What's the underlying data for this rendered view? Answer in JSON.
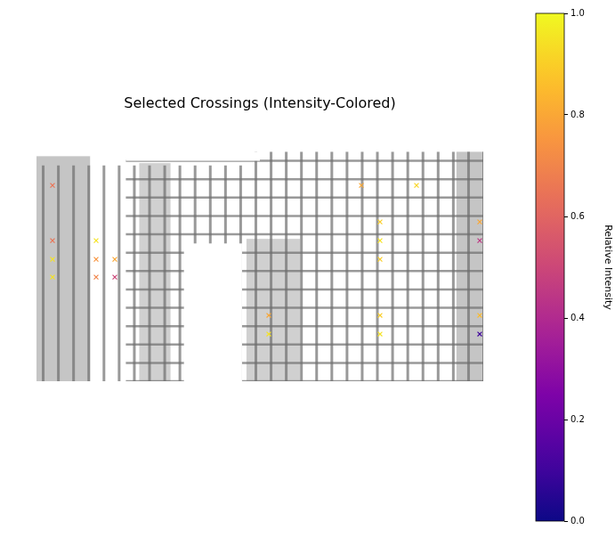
{
  "chart_data": {
    "type": "scatter",
    "title": "Selected Crossings (Intensity-Colored)",
    "marker": "x",
    "xlim": [
      0,
      502
    ],
    "ylim": [
      258,
      0
    ],
    "tick_labels": false,
    "grid": false,
    "x": [
      18,
      18,
      18,
      18,
      67,
      67,
      67,
      88,
      88,
      261,
      261,
      365,
      386,
      386,
      386,
      386,
      386,
      427,
      498,
      498,
      498,
      498
    ],
    "y": [
      38,
      100,
      121,
      141,
      100,
      121,
      141,
      121,
      141,
      184,
      205,
      38,
      79,
      100,
      121,
      184,
      205,
      38,
      79,
      100,
      184,
      205
    ],
    "intensity": [
      0.65,
      0.65,
      0.95,
      0.95,
      0.95,
      0.75,
      0.7,
      0.8,
      0.5,
      0.8,
      0.95,
      0.8,
      0.9,
      0.95,
      0.9,
      0.9,
      0.95,
      0.92,
      0.8,
      0.45,
      0.85,
      0.1
    ],
    "colorbar": {
      "label": "Relative Intensity",
      "range": [
        0,
        1
      ],
      "ticks": [
        {
          "value": 0,
          "label": "0.0"
        },
        {
          "value": 0.2,
          "label": "0.2"
        },
        {
          "value": 0.4,
          "label": "0.4"
        },
        {
          "value": 0.6,
          "label": "0.6"
        },
        {
          "value": 0.8,
          "label": "0.8"
        },
        {
          "value": 1,
          "label": "1.0"
        }
      ]
    }
  }
}
